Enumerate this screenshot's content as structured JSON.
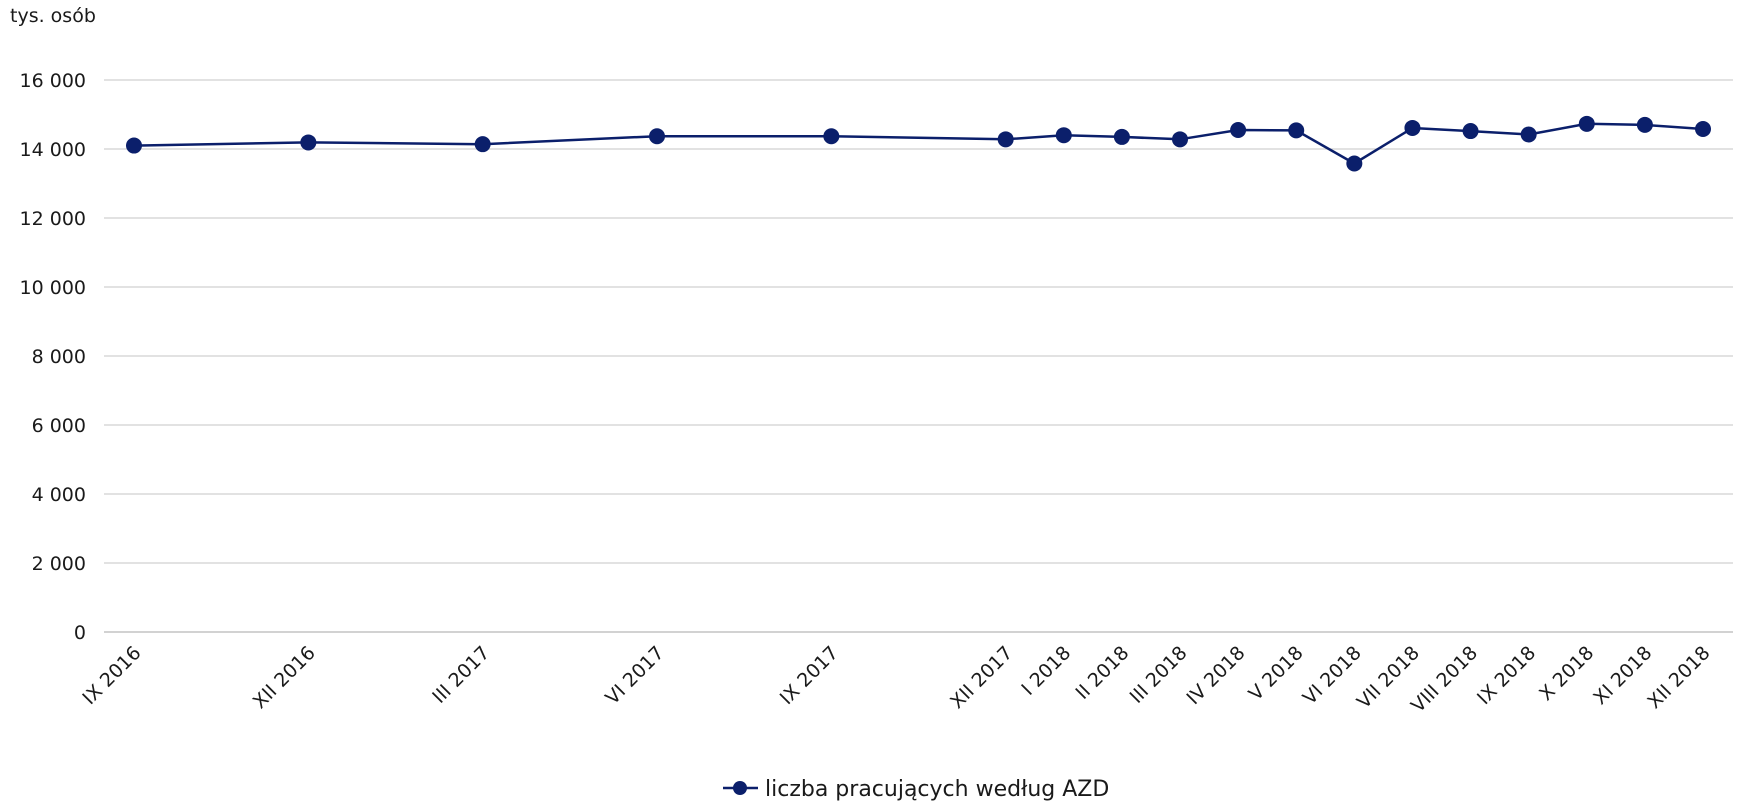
{
  "chart_data": {
    "type": "line",
    "ylabel": "tys. osób",
    "ylim": [
      0,
      16000
    ],
    "yticks": [
      0,
      2000,
      4000,
      6000,
      8000,
      10000,
      12000,
      14000,
      16000
    ],
    "ytick_labels": [
      "0",
      "2 000",
      "4 000",
      "6 000",
      "8 000",
      "10 000",
      "12 000",
      "14 000",
      "16 000"
    ],
    "categories": [
      "IX 2016",
      "XII 2016",
      "III 2017",
      "VI 2017",
      "IX 2017",
      "XII 2017",
      "I 2018",
      "II 2018",
      "III 2018",
      "IV 2018",
      "V 2018",
      "VI 2018",
      "VII 2018",
      "VIII 2018",
      "IX 2018",
      "X 2018",
      "XI 2018",
      "XII 2018"
    ],
    "x_month_index": [
      0,
      3,
      6,
      9,
      12,
      15,
      16,
      17,
      18,
      19,
      20,
      21,
      22,
      23,
      24,
      25,
      26,
      27
    ],
    "series": [
      {
        "name": "liczba pracujących według AZD",
        "color": "#0b1f6b",
        "values": [
          14100,
          14190,
          14140,
          14370,
          14370,
          14280,
          14400,
          14350,
          14280,
          14550,
          14540,
          13580,
          14610,
          14520,
          14420,
          14730,
          14700,
          14580
        ]
      }
    ],
    "grid": true,
    "legend_position": "bottom-center"
  }
}
